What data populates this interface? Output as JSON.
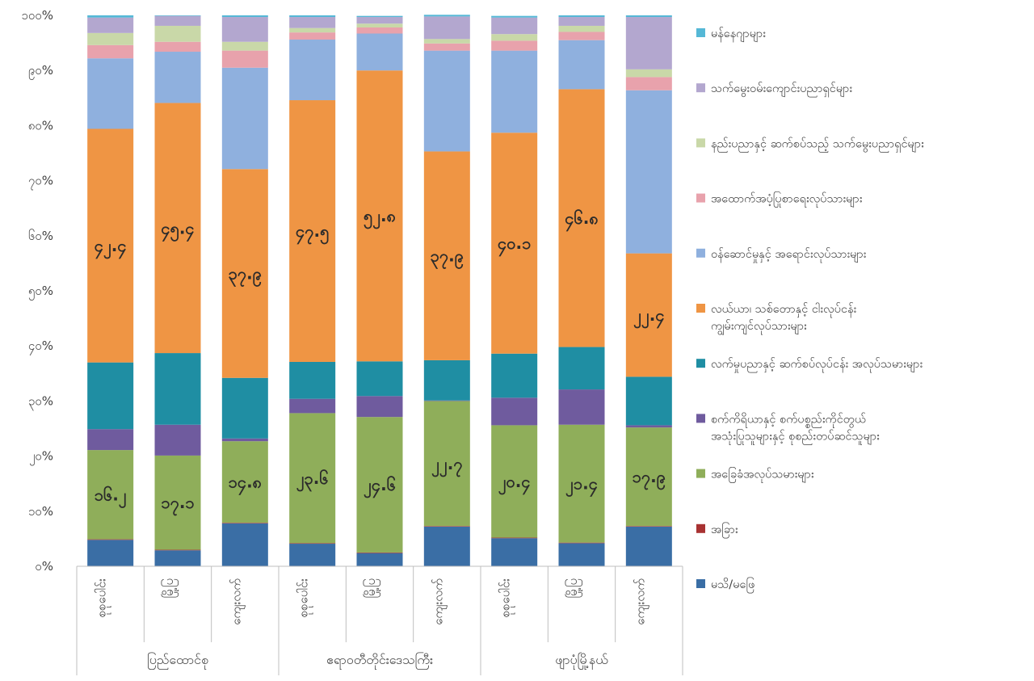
{
  "chart_data": {
    "type": "bar",
    "stacked": true,
    "percent": true,
    "ylim": [
      0,
      100
    ],
    "y_ticks": [
      "၀%",
      "၁၀%",
      "၂၀%",
      "၃၀%",
      "၄၀%",
      "၅၀%",
      "၆၀%",
      "၇၀%",
      "၈၀%",
      "၉၀%",
      "၁၀၀%"
    ],
    "categories": [
      "စုစုပေါင်း",
      "မြို့ပြ",
      "ကျေးလက်",
      "စုစုပေါင်း",
      "မြို့ပြ",
      "ကျေးလက်",
      "စုစုပေါင်း",
      "မြို့ပြ",
      "ကျေးလက်"
    ],
    "groups": [
      {
        "label": "ပြည်ထောင်စု",
        "categories": [
          0,
          1,
          2
        ]
      },
      {
        "label": "ဧရာဝတီတိုင်းဒေသကြီး",
        "categories": [
          3,
          4,
          5
        ]
      },
      {
        "label": "ဖျာပုံမြို့နယ်",
        "categories": [
          6,
          7,
          8
        ]
      }
    ],
    "series": [
      {
        "name": "မသိ/မဖြေ",
        "color": "#3a6ea5",
        "values": [
          4.8,
          2.9,
          7.8,
          4.1,
          2.4,
          7.2,
          5.1,
          4.2,
          7.2
        ]
      },
      {
        "name": "အခြား",
        "color": "#a83232",
        "values": [
          0.1,
          0.1,
          0.1,
          0.1,
          0.1,
          0.1,
          0.1,
          0.1,
          0.1
        ]
      },
      {
        "name": "အခြေခံအလုပ်သမားများ",
        "color": "#8fae5a",
        "values": [
          16.2,
          17.1,
          14.8,
          23.6,
          24.6,
          22.7,
          20.4,
          21.4,
          17.9
        ]
      },
      {
        "name": "စက်ကိရိယာနှင့် စက်ပစ္စည်းကိုင်တွယ် အသုံးပြုသူများနှင့် စုစည်းတပ်ဆင်သူများ",
        "color": "#6f5b9e",
        "values": [
          3.8,
          5.6,
          0.5,
          2.6,
          3.8,
          0.1,
          5.0,
          6.4,
          0.4
        ]
      },
      {
        "name": "လက်မှုပညာနှင့် ဆက်စပ်လုပ်ငန်း အလုပ်သမားများ",
        "color": "#1f8ea3",
        "values": [
          12.1,
          13.0,
          11.0,
          6.7,
          6.3,
          7.3,
          8.0,
          7.7,
          8.8
        ]
      },
      {
        "name": "လယ်ယာ၊ သစ်တောနှင့် ငါးလုပ်ငန်း ကျွမ်းကျင်လုပ်သားများ",
        "color": "#ef9544",
        "values": [
          42.4,
          45.4,
          37.9,
          47.5,
          52.8,
          37.9,
          40.1,
          46.8,
          22.4
        ]
      },
      {
        "name": "ဝန်ဆောင်မှုနှင့် အရောင်းလုပ်သားများ",
        "color": "#8fb0de",
        "values": [
          12.8,
          9.3,
          18.4,
          11.0,
          6.7,
          18.3,
          14.9,
          8.9,
          29.6
        ]
      },
      {
        "name": "အထောက်အပံ့ပြုစာရေးလုပ်သားများ",
        "color": "#e8a2ac",
        "values": [
          2.4,
          1.8,
          3.1,
          1.3,
          1.1,
          1.3,
          1.8,
          1.5,
          2.4
        ]
      },
      {
        "name": "နည်းပညာနှင့် ဆက်စပ်သည့် သက်မွေးပညာရှင်များ",
        "color": "#c9d8a8",
        "values": [
          2.2,
          2.9,
          1.6,
          0.8,
          0.7,
          0.8,
          1.2,
          1.1,
          1.4
        ]
      },
      {
        "name": "သက်မွေးဝမ်းကျောင်းပညာရှင်များ",
        "color": "#b3a7cf",
        "values": [
          2.8,
          1.8,
          4.5,
          2.0,
          1.2,
          4.1,
          3.0,
          1.6,
          9.5
        ]
      },
      {
        "name": "မန်နေဂျာများ",
        "color": "#55b8d6",
        "values": [
          0.4,
          0.1,
          0.3,
          0.3,
          0.2,
          0.3,
          0.3,
          0.3,
          0.3
        ]
      }
    ],
    "data_labels": [
      {
        "category": 0,
        "series": 2,
        "text": "၁၆.၂"
      },
      {
        "category": 1,
        "series": 2,
        "text": "၁၇.၁"
      },
      {
        "category": 2,
        "series": 2,
        "text": "၁၄.၈"
      },
      {
        "category": 3,
        "series": 2,
        "text": "၂၃.၆"
      },
      {
        "category": 4,
        "series": 2,
        "text": "၂၄.၆"
      },
      {
        "category": 5,
        "series": 2,
        "text": "၂၂.၇"
      },
      {
        "category": 6,
        "series": 2,
        "text": "၂၀.၄"
      },
      {
        "category": 7,
        "series": 2,
        "text": "၂၁.၄"
      },
      {
        "category": 8,
        "series": 2,
        "text": "၁၇.၉"
      },
      {
        "category": 0,
        "series": 5,
        "text": "၄၂.၄"
      },
      {
        "category": 1,
        "series": 5,
        "text": "၄၅.၄"
      },
      {
        "category": 2,
        "series": 5,
        "text": "၃၇.၉"
      },
      {
        "category": 3,
        "series": 5,
        "text": "၄၇.၅"
      },
      {
        "category": 4,
        "series": 5,
        "text": "၅၂.၈"
      },
      {
        "category": 5,
        "series": 5,
        "text": "၃၇.၉"
      },
      {
        "category": 6,
        "series": 5,
        "text": "၄၀.၁"
      },
      {
        "category": 7,
        "series": 5,
        "text": "၄၆.၈"
      },
      {
        "category": 8,
        "series": 5,
        "text": "၂၂.၄"
      }
    ],
    "legend_order": [
      10,
      9,
      8,
      7,
      6,
      5,
      4,
      3,
      2,
      1,
      0
    ],
    "legend_position": "right",
    "grid": false
  }
}
